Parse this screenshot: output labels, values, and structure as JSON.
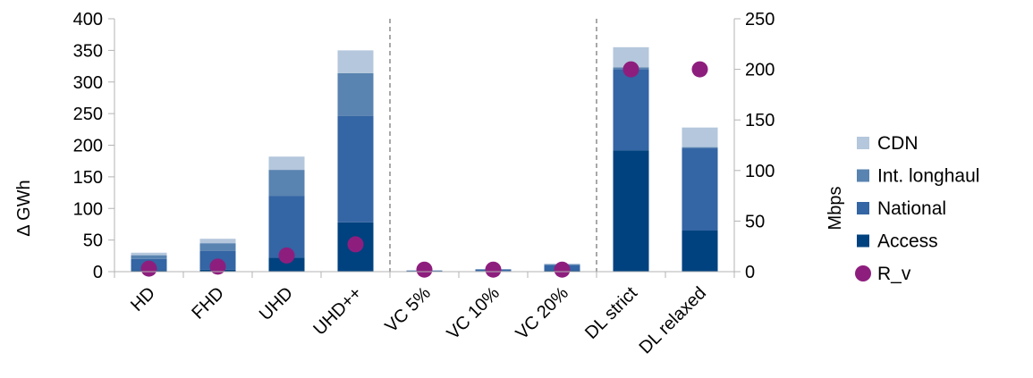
{
  "chart_data": {
    "type": "bar",
    "stacked": true,
    "categories": [
      "HD",
      "FHD",
      "UHD",
      "UHD++",
      "VC 5%",
      "VC 10%",
      "VC 20%",
      "DL strict",
      "DL relaxed"
    ],
    "series": [
      {
        "name": "Access",
        "color": "#00427f",
        "values": [
          2,
          3,
          22,
          78,
          0.5,
          1,
          2,
          192,
          65
        ]
      },
      {
        "name": "National",
        "color": "#3465a4",
        "values": [
          18,
          30,
          98,
          168,
          1,
          2,
          8,
          128,
          130
        ]
      },
      {
        "name": "Int. longhaul",
        "color": "#5983b0",
        "values": [
          6,
          12,
          41,
          68,
          0.5,
          1,
          2,
          3,
          2
        ]
      },
      {
        "name": "CDN",
        "color": "#b4c7dc",
        "values": [
          4,
          7,
          21,
          36,
          0,
          0,
          0,
          32,
          31
        ]
      }
    ],
    "secondary_series": {
      "name": "R_v",
      "type": "scatter",
      "color": "#8e1e7e",
      "values": [
        3,
        5,
        16,
        27,
        2,
        2,
        2,
        200,
        200
      ]
    },
    "ylabel": "Δ GWh",
    "y2label": "Mbps",
    "ylim": [
      0,
      400
    ],
    "y2lim": [
      0,
      250
    ],
    "yticks": [
      "0",
      "50",
      "100",
      "150",
      "200",
      "250",
      "300",
      "350",
      "400"
    ],
    "y2ticks": [
      "0",
      "50",
      "100",
      "150",
      "200",
      "250"
    ],
    "group_dividers_after": [
      3,
      6
    ],
    "legend_position": "right",
    "legend": [
      "CDN",
      "Int. longhaul",
      "National",
      "Access",
      "R_v"
    ]
  }
}
